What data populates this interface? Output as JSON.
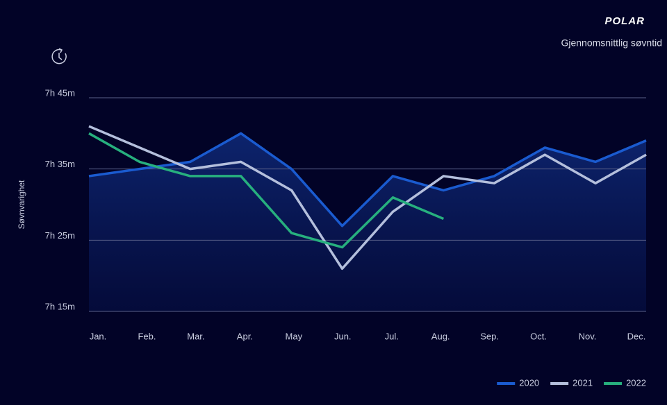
{
  "chart_data": {
    "type": "line",
    "brand": "POLAR",
    "title": "Gjennomsnittlig søvntid",
    "y_label": "Søvnvarighet",
    "categories": [
      "Jan.",
      "Feb.",
      "Mar.",
      "Apr.",
      "May",
      "Jun.",
      "Jul.",
      "Aug.",
      "Sep.",
      "Oct.",
      "Nov.",
      "Dec."
    ],
    "series": [
      {
        "name": "2020",
        "color": "#1a5bd0",
        "values": [
          454,
          455,
          456,
          460,
          455,
          447,
          454,
          452,
          454,
          458,
          456,
          459
        ]
      },
      {
        "name": "2021",
        "color": "#b4bfdc",
        "values": [
          461,
          458,
          455,
          456,
          452,
          441,
          449,
          454,
          453,
          457,
          453,
          457
        ]
      },
      {
        "name": "2022",
        "color": "#27b07e",
        "values": [
          460,
          456,
          454,
          454,
          446,
          444,
          451,
          448,
          null,
          null,
          null,
          null
        ]
      }
    ],
    "ylim": [
      435,
      465
    ],
    "yticks": [
      {
        "value": 435,
        "label": "7h 15m"
      },
      {
        "value": 445,
        "label": "7h 25m"
      },
      {
        "value": 455,
        "label": "7h 35m"
      },
      {
        "value": 465,
        "label": "7h 45m"
      }
    ],
    "grid": true,
    "legend": "bottom-right",
    "area_under": "2020"
  }
}
